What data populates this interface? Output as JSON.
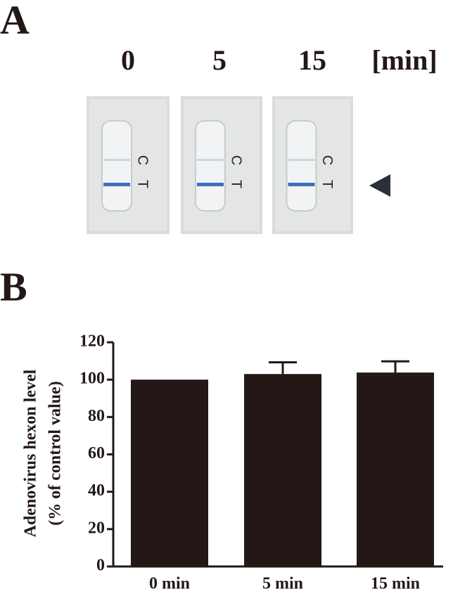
{
  "panel_a": {
    "label": "A",
    "times": [
      "0",
      "5",
      "15"
    ],
    "unit": "[min]",
    "strips": [
      {
        "control": "C",
        "test": "T"
      },
      {
        "control": "C",
        "test": "T"
      },
      {
        "control": "C",
        "test": "T"
      }
    ]
  },
  "panel_b_label": "B",
  "chart_data": {
    "type": "bar",
    "ylabel": [
      "Adenovirus hexon level",
      "(% of control value)"
    ],
    "categories": [
      "0 min",
      "5 min",
      "15 min"
    ],
    "values": [
      100,
      103,
      103.8
    ],
    "errors": [
      null,
      6.3,
      6
    ],
    "color": "#231815",
    "ylim": [
      0,
      120
    ],
    "yticks": [
      0,
      20,
      40,
      60,
      80,
      100,
      120
    ]
  }
}
